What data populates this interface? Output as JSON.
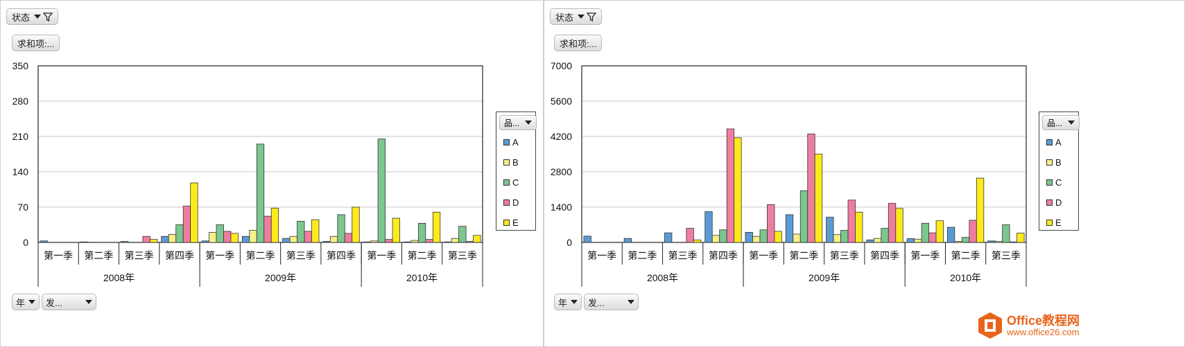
{
  "panels": [
    {
      "filter_label": "状态",
      "value_label": "求和项:...",
      "axis_field_year": "年",
      "axis_field_other": "发...",
      "legend_title": "品...",
      "chart_data": {
        "type": "bar",
        "title": "",
        "ylim": [
          0,
          350
        ],
        "yticks": [
          "0",
          "70",
          "140",
          "210",
          "280",
          "350"
        ],
        "grid": true,
        "legend": "right",
        "years": [
          "2008年",
          "2009年",
          "2010年"
        ],
        "year_spans": [
          4,
          4,
          3
        ],
        "categories": [
          "第一季",
          "第二季",
          "第三季",
          "第四季",
          "第一季",
          "第二季",
          "第三季",
          "第四季",
          "第一季",
          "第二季",
          "第三季"
        ],
        "series": [
          {
            "name": "A",
            "color": "#5b9bd5",
            "values": [
              3,
              1,
              2,
              12,
              3,
              12,
              8,
              2,
              1,
              1,
              1
            ]
          },
          {
            "name": "B",
            "color": "#f5f088",
            "values": [
              0,
              0,
              0,
              16,
              20,
              24,
              12,
              12,
              3,
              4,
              8
            ]
          },
          {
            "name": "C",
            "color": "#7cc68f",
            "values": [
              0,
              0,
              0,
              35,
              35,
              195,
              42,
              55,
              205,
              38,
              32
            ]
          },
          {
            "name": "D",
            "color": "#ee7ea0",
            "values": [
              0,
              0,
              12,
              72,
              22,
              52,
              22,
              18,
              6,
              6,
              2
            ]
          },
          {
            "name": "E",
            "color": "#fdea1b",
            "values": [
              0,
              0,
              6,
              118,
              18,
              68,
              45,
              70,
              48,
              60,
              14
            ]
          }
        ]
      }
    },
    {
      "filter_label": "状态",
      "value_label": "求和项:...",
      "axis_field_year": "年",
      "axis_field_other": "发...",
      "legend_title": "品...",
      "chart_data": {
        "type": "bar",
        "title": "",
        "ylim": [
          0,
          7000
        ],
        "yticks": [
          "0",
          "1400",
          "2800",
          "4200",
          "5600",
          "7000"
        ],
        "grid": true,
        "legend": "right",
        "years": [
          "2008年",
          "2009年",
          "2010年"
        ],
        "year_spans": [
          4,
          4,
          3
        ],
        "categories": [
          "第一季",
          "第二季",
          "第三季",
          "第四季",
          "第一季",
          "第二季",
          "第三季",
          "第四季",
          "第一季",
          "第二季",
          "第三季"
        ],
        "series": [
          {
            "name": "A",
            "color": "#5b9bd5",
            "values": [
              250,
              160,
              380,
              1220,
              400,
              1100,
              1000,
              100,
              150,
              600,
              60
            ]
          },
          {
            "name": "B",
            "color": "#f5f088",
            "values": [
              0,
              0,
              0,
              280,
              240,
              330,
              310,
              160,
              130,
              40,
              40
            ]
          },
          {
            "name": "C",
            "color": "#7cc68f",
            "values": [
              0,
              0,
              0,
              500,
              500,
              2050,
              480,
              560,
              760,
              200,
              700
            ]
          },
          {
            "name": "D",
            "color": "#ee7ea0",
            "values": [
              0,
              0,
              560,
              4500,
              1500,
              4300,
              1680,
              1550,
              380,
              880,
              20
            ]
          },
          {
            "name": "E",
            "color": "#fdea1b",
            "values": [
              0,
              0,
              100,
              4150,
              440,
              3500,
              1200,
              1350,
              860,
              2550,
              370
            ]
          }
        ]
      }
    }
  ],
  "watermark": {
    "brand": "Office教程网",
    "url": "www.office26.com"
  }
}
